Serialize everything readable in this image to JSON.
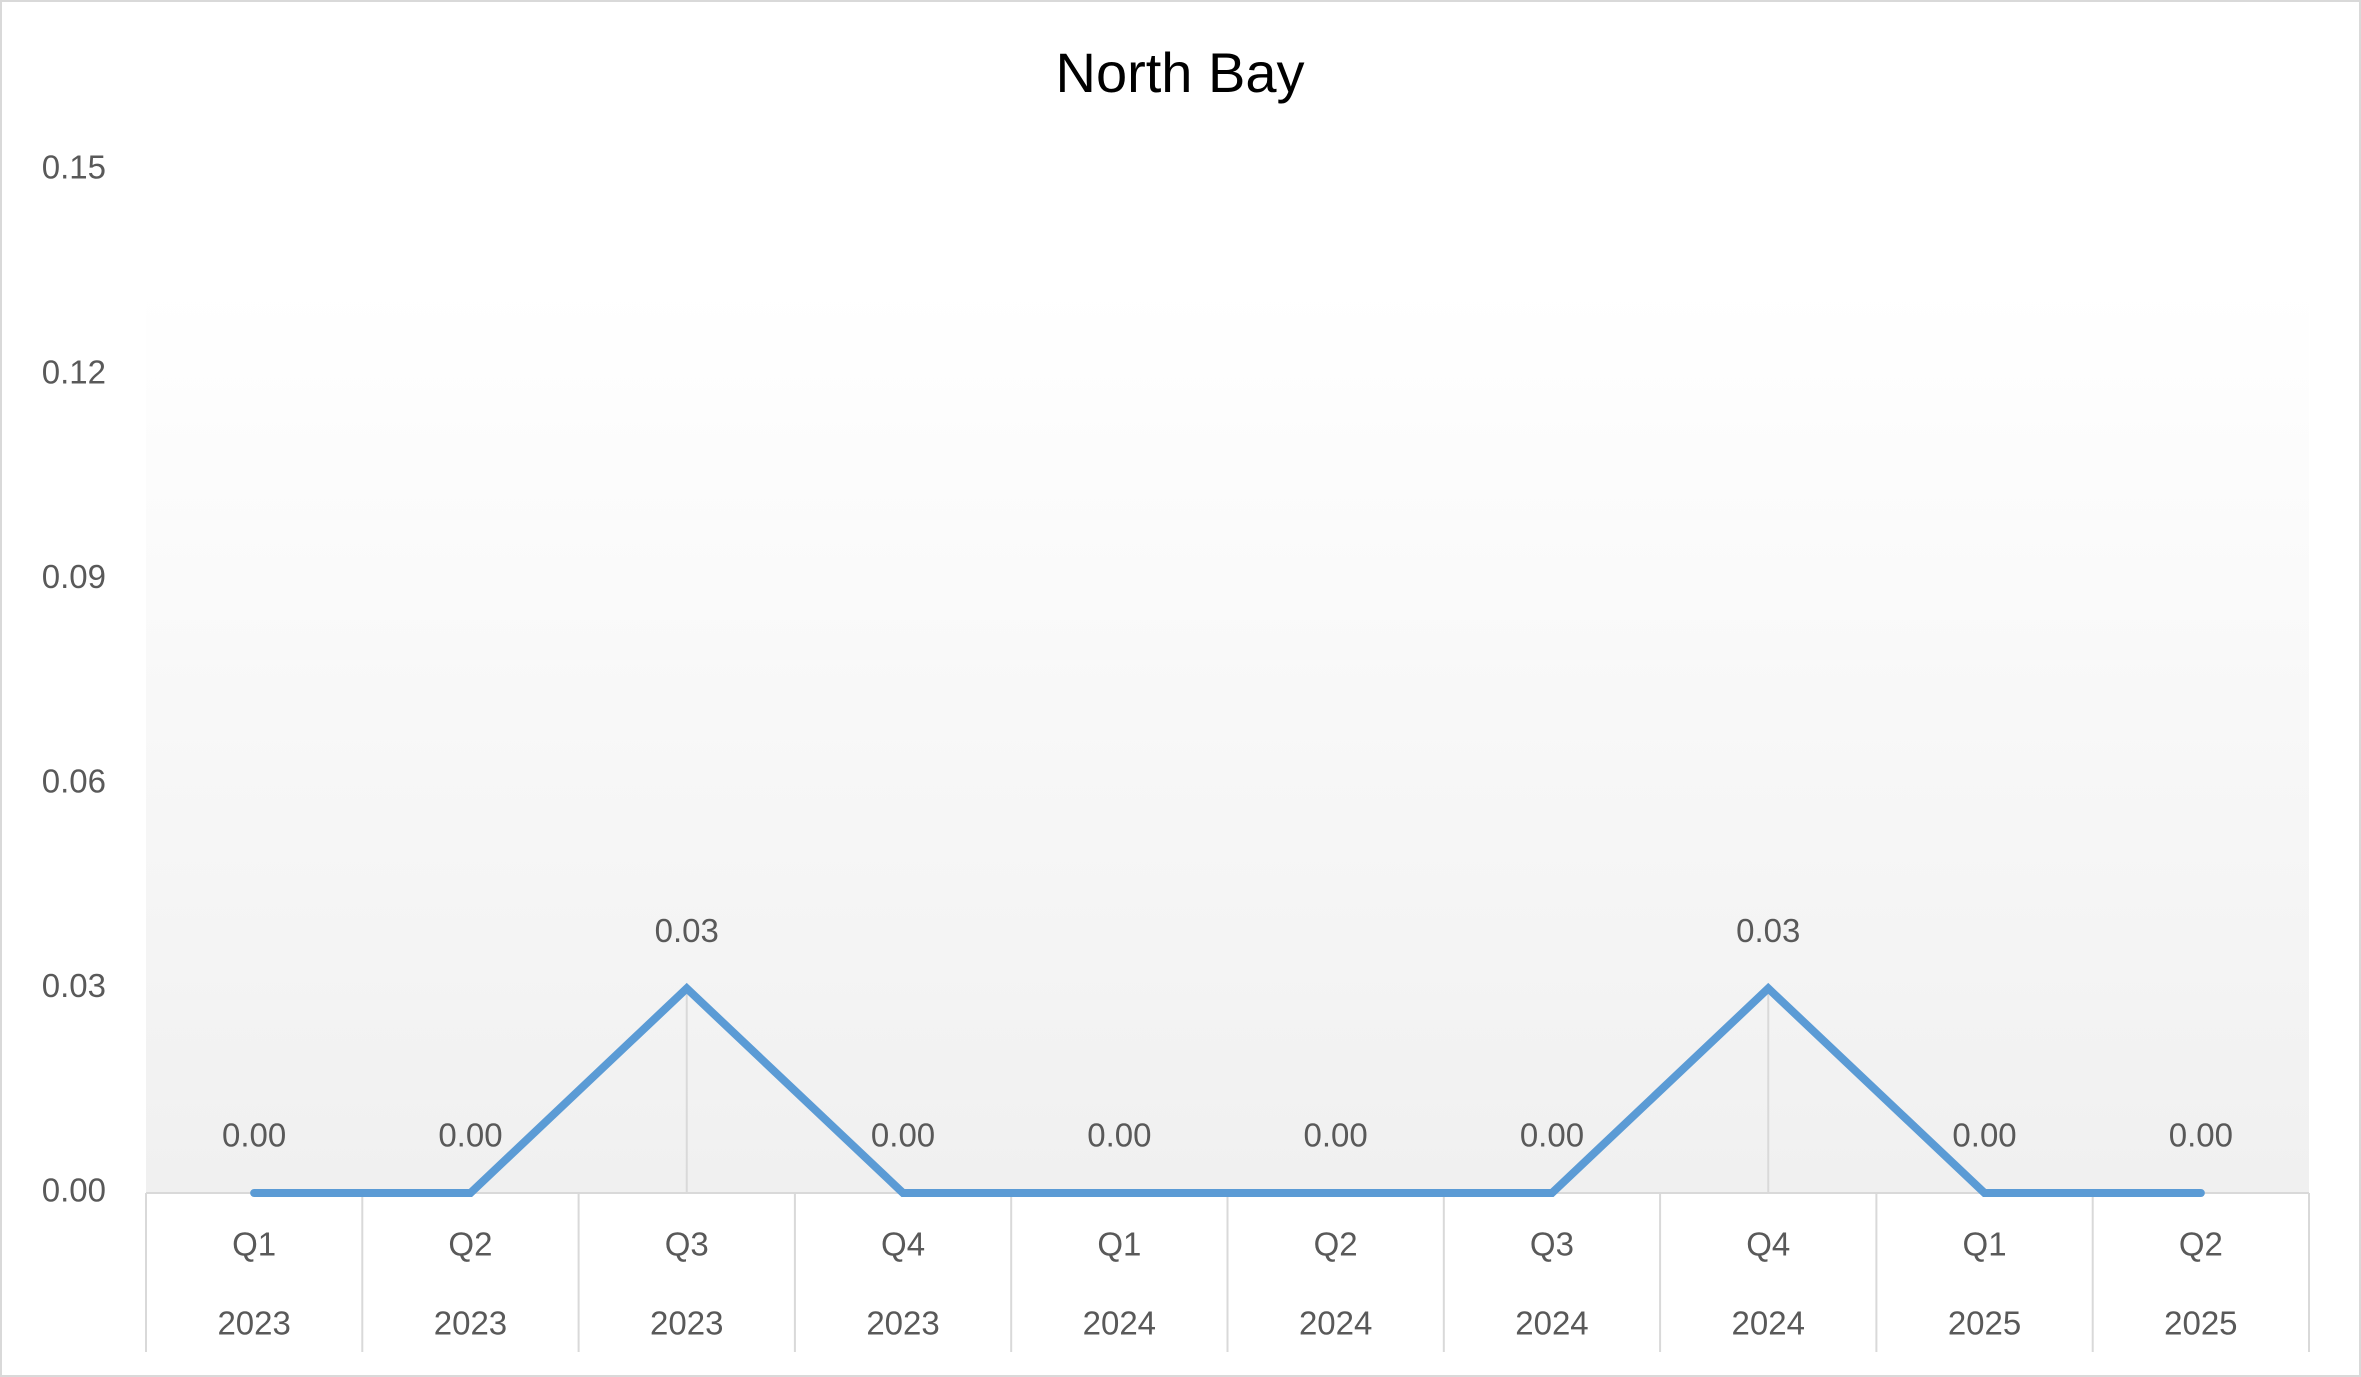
{
  "chart_data": {
    "type": "line",
    "title": "North Bay",
    "categories": [
      [
        "Q1",
        "2023"
      ],
      [
        "Q2",
        "2023"
      ],
      [
        "Q3",
        "2023"
      ],
      [
        "Q4",
        "2023"
      ],
      [
        "Q1",
        "2024"
      ],
      [
        "Q2",
        "2024"
      ],
      [
        "Q3",
        "2024"
      ],
      [
        "Q4",
        "2024"
      ],
      [
        "Q1",
        "2025"
      ],
      [
        "Q2",
        "2025"
      ]
    ],
    "values": [
      0,
      0,
      0.03,
      0,
      0,
      0,
      0,
      0.03,
      0,
      0
    ],
    "value_labels": [
      "0.00",
      "0.00",
      "0.03",
      "0.00",
      "0.00",
      "0.00",
      "0.00",
      "0.03",
      "0.00",
      "0.00"
    ],
    "color": "#5b9bd5",
    "ylim": [
      0,
      0.15
    ],
    "yticks": [
      {
        "value": 0,
        "label": "0.00"
      },
      0.03,
      0.06,
      0.09,
      0.12,
      0.15
    ]
  }
}
